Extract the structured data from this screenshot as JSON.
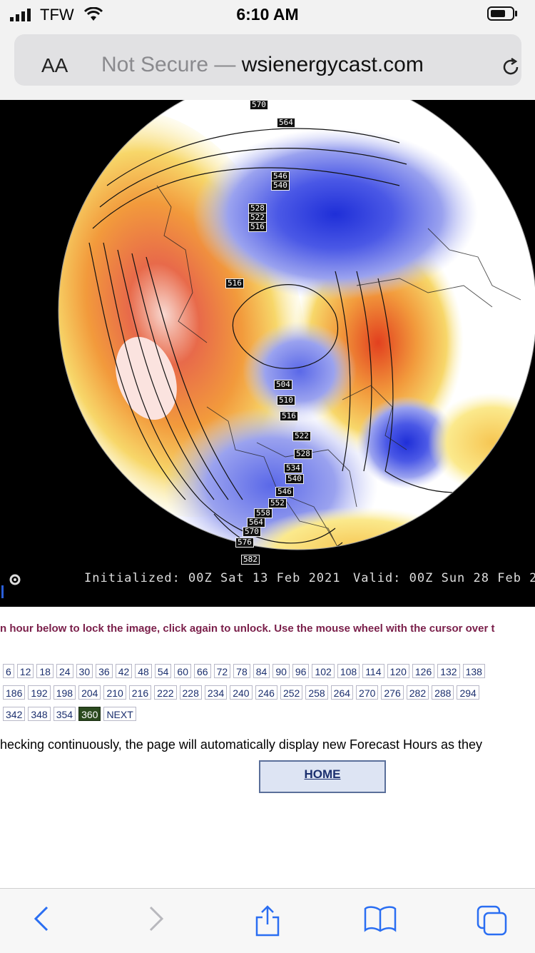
{
  "status_bar": {
    "carrier": "TFW",
    "time": "6:10 AM"
  },
  "browser": {
    "text_size_label": "AA",
    "security_text": "Not Secure — ",
    "domain": "wsienergycast.com"
  },
  "map": {
    "initialized": "Initialized: 00Z Sat 13 Feb 2021",
    "valid": "Valid: 00Z Sun 28 Feb 2",
    "contour_labels": [
      "570",
      "564",
      "546",
      "540",
      "528",
      "522",
      "516",
      "516",
      "504",
      "510",
      "516",
      "522",
      "528",
      "534",
      "540",
      "546",
      "552",
      "558",
      "564",
      "570",
      "576",
      "582"
    ]
  },
  "page": {
    "instructions": "n hour below to lock the image, click again to unlock. Use the mouse wheel with the cursor over t",
    "hour_rows": [
      [
        "6",
        "12",
        "18",
        "24",
        "30",
        "36",
        "42",
        "48",
        "54",
        "60",
        "66",
        "72",
        "78",
        "84",
        "90",
        "96",
        "102",
        "108",
        "114",
        "120",
        "126",
        "132",
        "138"
      ],
      [
        "186",
        "192",
        "198",
        "204",
        "210",
        "216",
        "222",
        "228",
        "234",
        "240",
        "246",
        "252",
        "258",
        "264",
        "270",
        "276",
        "282",
        "288",
        "294"
      ],
      [
        "342",
        "348",
        "354",
        "360",
        "NEXT"
      ]
    ],
    "selected_hour": "360",
    "checking_text": "hecking continuously, the page will automatically display new Forecast Hours as they",
    "home_label": "HOME"
  },
  "icons": [
    "signal-icon",
    "wifi-icon",
    "battery-icon",
    "reload-icon",
    "settings-icon",
    "back-icon",
    "forward-icon",
    "share-icon",
    "bookmarks-icon",
    "tabs-icon"
  ]
}
